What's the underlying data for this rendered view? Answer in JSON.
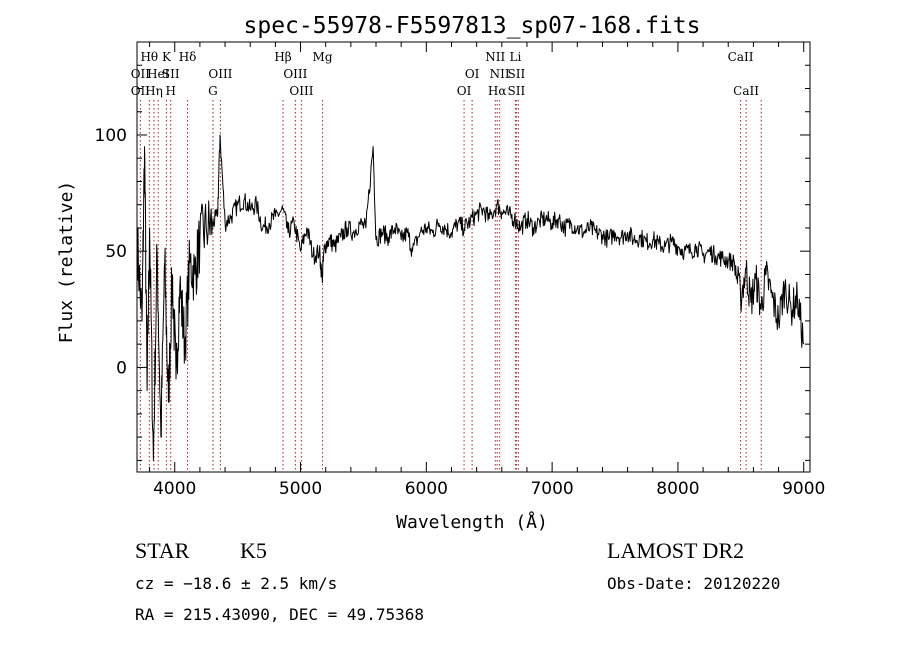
{
  "chart_data": {
    "type": "line",
    "title": "spec-55978-F5597813_sp07-168.fits",
    "xlabel": "Wavelength (Å)",
    "ylabel": "Flux (relative)",
    "xlim": [
      3700,
      9050
    ],
    "ylim": [
      -45,
      140
    ],
    "xticks": [
      4000,
      5000,
      6000,
      7000,
      8000,
      9000
    ],
    "xtick_labels": [
      "4000",
      "5000",
      "6000",
      "7000",
      "8000",
      "9000"
    ],
    "yticks": [
      0,
      50,
      100
    ],
    "ytick_labels": [
      "0",
      "50",
      "100"
    ],
    "grid": false,
    "series": [
      {
        "color": "#000000",
        "x": [
          3700,
          3740,
          3760,
          3780,
          3800,
          3830,
          3860,
          3890,
          3920,
          3950,
          3980,
          4010,
          4040,
          4080,
          4120,
          4160,
          4200,
          4250,
          4300,
          4340,
          4360,
          4400,
          4450,
          4500,
          4550,
          4600,
          4650,
          4700,
          4750,
          4800,
          4861,
          4900,
          4950,
          5000,
          5050,
          5100,
          5150,
          5172,
          5190,
          5230,
          5270,
          5320,
          5370,
          5420,
          5470,
          5520,
          5577,
          5600,
          5650,
          5700,
          5750,
          5800,
          5850,
          5890,
          5950,
          6000,
          6050,
          6100,
          6150,
          6200,
          6250,
          6300,
          6350,
          6400,
          6450,
          6500,
          6563,
          6600,
          6650,
          6700,
          6750,
          6800,
          6850,
          6900,
          6950,
          7000,
          7050,
          7100,
          7150,
          7200,
          7250,
          7300,
          7350,
          7400,
          7450,
          7500,
          7550,
          7600,
          7650,
          7700,
          7750,
          7800,
          7850,
          7900,
          7950,
          8000,
          8050,
          8100,
          8150,
          8200,
          8250,
          8300,
          8350,
          8400,
          8450,
          8498,
          8542,
          8580,
          8620,
          8662,
          8700,
          8750,
          8800,
          8850,
          8900,
          8950,
          9000
        ],
        "y": [
          55,
          20,
          95,
          -10,
          60,
          -40,
          50,
          -30,
          45,
          -15,
          40,
          -5,
          35,
          10,
          45,
          40,
          55,
          60,
          62,
          65,
          100,
          62,
          65,
          70,
          72,
          68,
          70,
          60,
          62,
          65,
          68,
          58,
          62,
          50,
          60,
          48,
          50,
          38,
          52,
          55,
          52,
          56,
          60,
          58,
          62,
          60,
          95,
          55,
          58,
          56,
          60,
          55,
          58,
          50,
          58,
          60,
          58,
          62,
          60,
          58,
          62,
          60,
          63,
          66,
          68,
          64,
          70,
          67,
          66,
          64,
          60,
          64,
          60,
          63,
          64,
          62,
          64,
          60,
          62,
          60,
          58,
          60,
          58,
          57,
          55,
          58,
          56,
          58,
          55,
          56,
          54,
          55,
          53,
          52,
          54,
          52,
          50,
          50,
          52,
          48,
          50,
          48,
          47,
          46,
          45,
          30,
          42,
          28,
          38,
          25,
          40,
          30,
          20,
          35,
          25,
          30,
          10
        ]
      }
    ],
    "lines": [
      {
        "wave": 3727,
        "top": "",
        "row2": "OII",
        "row3": "OII"
      },
      {
        "wave": 3798,
        "top": "Hθ",
        "row2": "",
        "row3": ""
      },
      {
        "wave": 3835,
        "top": "",
        "row2": "",
        "row3": "Hη"
      },
      {
        "wave": 3869,
        "top": "",
        "row2": "HeI",
        "row3": ""
      },
      {
        "wave": 3934,
        "top": "K",
        "row2": "",
        "row3": ""
      },
      {
        "wave": 3968,
        "top": "",
        "row2": "SII",
        "row3": "H"
      },
      {
        "wave": 4102,
        "top": "Hδ",
        "row2": "",
        "row3": ""
      },
      {
        "wave": 4304,
        "top": "",
        "row2": "",
        "row3": "G"
      },
      {
        "wave": 4363,
        "top": "",
        "row2": "OIII",
        "row3": ""
      },
      {
        "wave": 4861,
        "top": "Hβ",
        "row2": "",
        "row3": ""
      },
      {
        "wave": 4959,
        "top": "",
        "row2": "OIII",
        "row3": ""
      },
      {
        "wave": 5007,
        "top": "",
        "row2": "",
        "row3": "OIII"
      },
      {
        "wave": 5175,
        "top": "Mg",
        "row2": "",
        "row3": ""
      },
      {
        "wave": 6300,
        "top": "",
        "row2": "",
        "row3": "OI"
      },
      {
        "wave": 6364,
        "top": "",
        "row2": "OI",
        "row3": ""
      },
      {
        "wave": 6548,
        "top": "NII",
        "row2": "",
        "row3": ""
      },
      {
        "wave": 6563,
        "top": "",
        "row2": "",
        "row3": "Hα"
      },
      {
        "wave": 6583,
        "top": "",
        "row2": "NII",
        "row3": ""
      },
      {
        "wave": 6708,
        "top": "Li",
        "row2": "",
        "row3": ""
      },
      {
        "wave": 6716,
        "top": "",
        "row2": "SII",
        "row3": "SII"
      },
      {
        "wave": 6731,
        "top": "",
        "row2": "",
        "row3": ""
      },
      {
        "wave": 8498,
        "top": "CaII",
        "row2": "",
        "row3": ""
      },
      {
        "wave": 8542,
        "top": "",
        "row2": "",
        "row3": "CaII"
      },
      {
        "wave": 8662,
        "top": "",
        "row2": "",
        "row3": ""
      }
    ]
  },
  "info": {
    "class": "STAR",
    "subclass": "K5",
    "survey": "LAMOST DR2",
    "cz": "cz = −18.6 ± 2.5 km/s",
    "obs_date": "Obs-Date: 20120220",
    "radec": "RA = 215.43090, DEC =  49.75368"
  }
}
